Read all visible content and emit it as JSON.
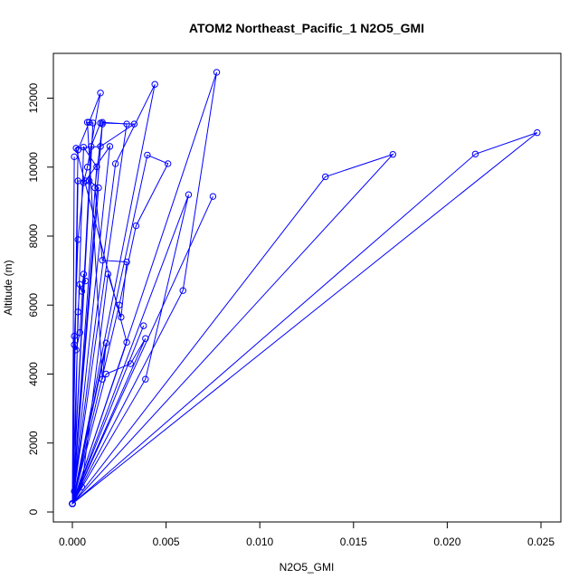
{
  "chart_data": {
    "type": "line",
    "title": "ATOM2 Northeast_Pacific_1 N2O5_GMI",
    "xlabel": "N2O5_GMI",
    "ylabel": "Altitude (m)",
    "xlim": [
      0,
      0.025
    ],
    "ylim": [
      0,
      12800
    ],
    "x_ticks": [
      0.0,
      0.005,
      0.01,
      0.015,
      0.02,
      0.025
    ],
    "x_tick_labels": [
      "0.000",
      "0.005",
      "0.010",
      "0.015",
      "0.020",
      "0.025"
    ],
    "y_ticks": [
      0,
      2000,
      4000,
      6000,
      8000,
      10000,
      12000
    ],
    "y_tick_labels": [
      "0",
      "2000",
      "4000",
      "6000",
      "8000",
      "10000",
      "12000"
    ],
    "grid": false,
    "series": [
      {
        "color": "#0000ff",
        "marker": "open-circle",
        "x": [
          0.0,
          0.0001,
          0.0003,
          0.0004,
          0.0005,
          0.0007,
          0.0006,
          0.0004,
          0.0002,
          0.0001,
          0.0,
          0.0001,
          0.0003,
          0.0006,
          0.0008,
          0.0015,
          0.0009,
          0.0003,
          0.0,
          0.0005,
          0.0019,
          0.0026,
          0.0029,
          0.0016,
          0.0012,
          0.0016,
          0.0,
          0.0018,
          0.0031,
          0.0039,
          0.0,
          0.0059,
          0.0077,
          0.0,
          0.0038,
          0.0,
          0.0075,
          0.0,
          0.0025,
          0.0034,
          0.0051,
          0.004,
          0.0,
          0.0039,
          0.0062,
          0.0,
          0.0001,
          0.0,
          0.0003,
          0.0007,
          0.002,
          0.0,
          0.0016,
          0.0029,
          0.0,
          0.0023,
          0.0044,
          0.0,
          0.0018,
          0.0016,
          0.0008,
          0.0011,
          0.0,
          0.0029,
          0.0002,
          0.0015,
          0.0033,
          0.0015,
          0.001,
          0.0,
          0.0006,
          0.0013,
          0.0,
          0.0135,
          0.0171,
          0.0,
          0.0215,
          0.0248,
          0.0,
          0.0014,
          0.0009,
          0.0,
          0.0003,
          0.0
        ],
        "y": [
          240,
          600,
          5800,
          6600,
          6400,
          6700,
          6900,
          5200,
          4700,
          5100,
          240,
          4850,
          7900,
          9550,
          10000,
          12150,
          11300,
          10500,
          240,
          730,
          6900,
          5650,
          7250,
          7300,
          9400,
          11250,
          240,
          4000,
          4300,
          5030,
          240,
          6420,
          12750,
          240,
          5400,
          240,
          9150,
          240,
          6000,
          8300,
          10100,
          10350,
          240,
          3850,
          9200,
          240,
          10300,
          240,
          9600,
          9600,
          10600,
          240,
          11300,
          11250,
          240,
          10100,
          12400,
          240,
          4900,
          3850,
          11300,
          11280,
          240,
          4920,
          10550,
          10600,
          11250,
          11280,
          10600,
          240,
          10580,
          10010,
          240,
          9720,
          10370,
          240,
          10380,
          11000,
          240,
          9400,
          9600,
          240,
          10500,
          240
        ]
      }
    ]
  }
}
